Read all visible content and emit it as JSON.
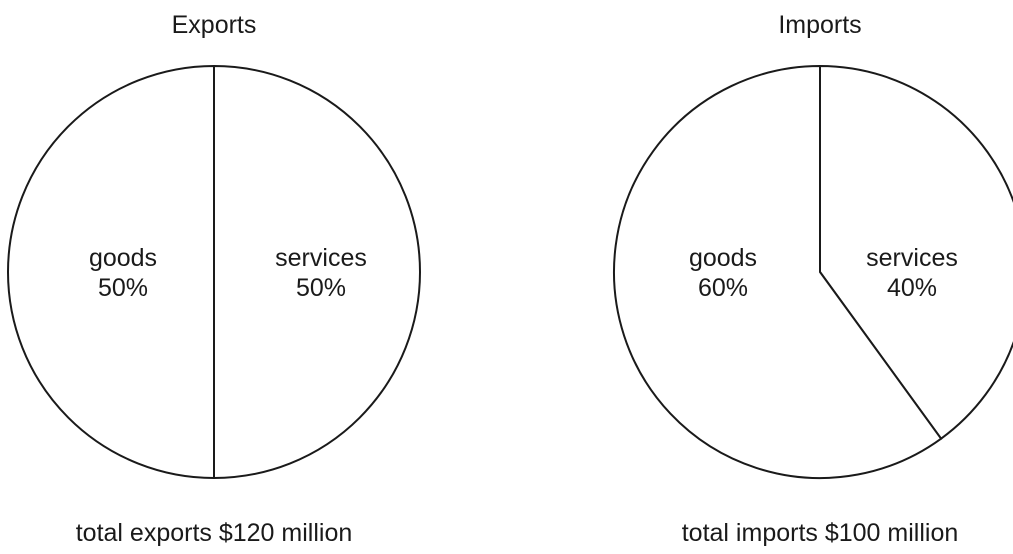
{
  "chart_data": [
    {
      "type": "pie",
      "title": "Exports",
      "slices": [
        {
          "label": "goods",
          "value": 50,
          "value_label": "50%"
        },
        {
          "label": "services",
          "value": 50,
          "value_label": "50%"
        }
      ],
      "footer": "total exports $120 million"
    },
    {
      "type": "pie",
      "title": "Imports",
      "slices": [
        {
          "label": "goods",
          "value": 60,
          "value_label": "60%"
        },
        {
          "label": "services",
          "value": 40,
          "value_label": "40%"
        }
      ],
      "footer": "total imports $100 million"
    }
  ]
}
